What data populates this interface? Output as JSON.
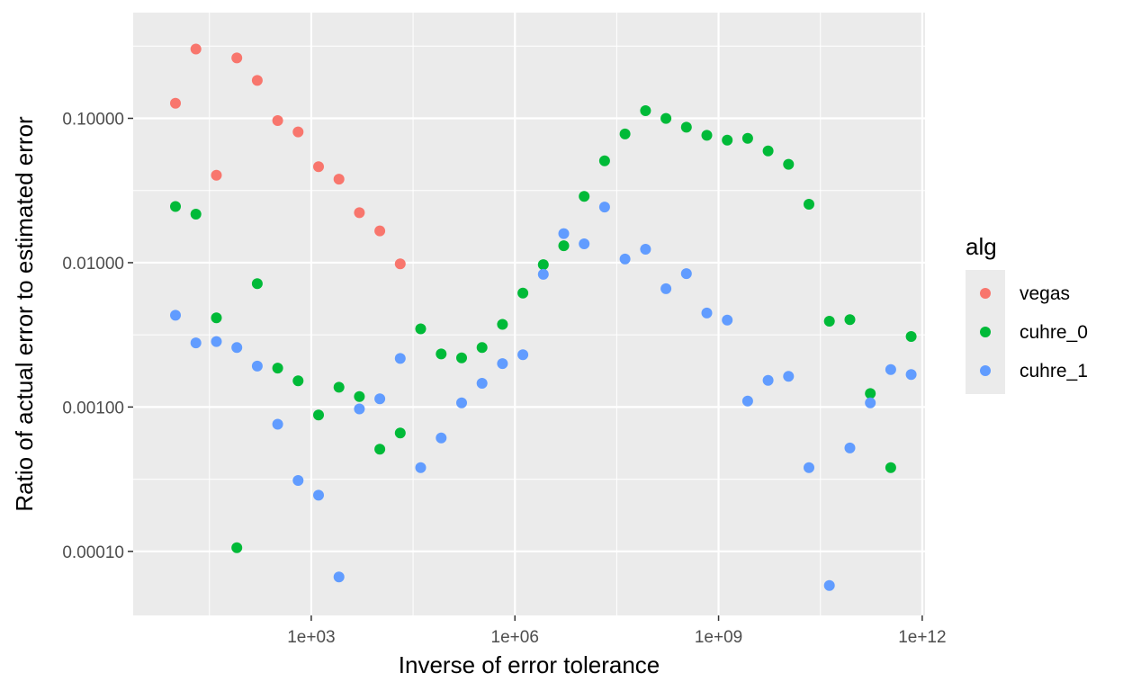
{
  "chart_data": {
    "type": "scatter",
    "xlabel": "Inverse of error tolerance",
    "ylabel": "Ratio of actual error to estimated error",
    "x_scale": "log10",
    "y_scale": "log10",
    "x_ticks": [
      {
        "value": 1000,
        "label": "1e+03"
      },
      {
        "value": 1000000,
        "label": "1e+06"
      },
      {
        "value": 1000000000,
        "label": "1e+09"
      },
      {
        "value": 1000000000000,
        "label": "1e+12"
      }
    ],
    "y_ticks": [
      {
        "value": 0.0001,
        "label": "0.00010"
      },
      {
        "value": 0.001,
        "label": "0.00100"
      },
      {
        "value": 0.01,
        "label": "0.01000"
      },
      {
        "value": 0.1,
        "label": "0.10000"
      }
    ],
    "xlim": [
      2.38,
      1100000000000.0
    ],
    "ylim": [
      3.6e-05,
      0.54
    ],
    "grid": true,
    "legend": {
      "title": "alg",
      "position": "right"
    },
    "series": [
      {
        "name": "vegas",
        "color": "#F8766D",
        "points": [
          [
            10,
            0.127
          ],
          [
            20,
            0.302
          ],
          [
            40,
            0.0404
          ],
          [
            80,
            0.262
          ],
          [
            160,
            0.183
          ],
          [
            320,
            0.0965
          ],
          [
            640,
            0.0805
          ],
          [
            1280,
            0.0463
          ],
          [
            2560,
            0.0379
          ],
          [
            5120,
            0.0222
          ],
          [
            10240,
            0.0166
          ],
          [
            20480,
            0.00982
          ]
        ]
      },
      {
        "name": "cuhre_0",
        "color": "#00BA38",
        "points": [
          [
            10,
            0.0245
          ],
          [
            20,
            0.0217
          ],
          [
            40,
            0.00415
          ],
          [
            80,
            0.000106
          ],
          [
            160,
            0.00715
          ],
          [
            320,
            0.00186
          ],
          [
            640,
            0.00152
          ],
          [
            1280,
            0.00088
          ],
          [
            2560,
            0.00137
          ],
          [
            5120,
            0.00118
          ],
          [
            10240,
            0.00051
          ],
          [
            20480,
            0.00066
          ],
          [
            40960,
            0.00348
          ],
          [
            81920,
            0.00233
          ],
          [
            163840,
            0.00219
          ],
          [
            327680,
            0.00258
          ],
          [
            655360,
            0.00374
          ],
          [
            1310720,
            0.00615
          ],
          [
            2621440,
            0.0097
          ],
          [
            5242880,
            0.0131
          ],
          [
            10485760,
            0.0288
          ],
          [
            20971520,
            0.0508
          ],
          [
            41943040,
            0.0779
          ],
          [
            83886080,
            0.113
          ],
          [
            167772160,
            0.0998
          ],
          [
            335544320,
            0.0868
          ],
          [
            671088640,
            0.0763
          ],
          [
            1342177280,
            0.0707
          ],
          [
            2684354560,
            0.0727
          ],
          [
            5368709120,
            0.0594
          ],
          [
            10737418240,
            0.048
          ],
          [
            21474836480,
            0.0254
          ],
          [
            42949672960,
            0.00393
          ],
          [
            85899345920,
            0.00403
          ],
          [
            171798691840,
            0.00124
          ],
          [
            343597383680,
            0.00038
          ],
          [
            687194767360,
            0.00308
          ]
        ]
      },
      {
        "name": "cuhre_1",
        "color": "#619CFF",
        "points": [
          [
            10,
            0.00432
          ],
          [
            20,
            0.00278
          ],
          [
            40,
            0.00284
          ],
          [
            80,
            0.00258
          ],
          [
            160,
            0.00192
          ],
          [
            320,
            0.00076
          ],
          [
            640,
            0.00031
          ],
          [
            1280,
            0.000245
          ],
          [
            2560,
            6.65e-05
          ],
          [
            5120,
            0.00097
          ],
          [
            10240,
            0.00114
          ],
          [
            20480,
            0.00217
          ],
          [
            40960,
            0.00038
          ],
          [
            81920,
            0.00061
          ],
          [
            163840,
            0.00107
          ],
          [
            327680,
            0.00146
          ],
          [
            655360,
            0.002
          ],
          [
            1310720,
            0.0023
          ],
          [
            2621440,
            0.0083
          ],
          [
            5242880,
            0.0159
          ],
          [
            10485760,
            0.0135
          ],
          [
            20971520,
            0.0243
          ],
          [
            41943040,
            0.0106
          ],
          [
            83886080,
            0.0124
          ],
          [
            167772160,
            0.0066
          ],
          [
            335544320,
            0.0084
          ],
          [
            671088640,
            0.00448
          ],
          [
            1342177280,
            0.004
          ],
          [
            2684354560,
            0.0011
          ],
          [
            5368709120,
            0.00153
          ],
          [
            10737418240,
            0.00163
          ],
          [
            21474836480,
            0.00038
          ],
          [
            42949672960,
            5.8e-05
          ],
          [
            85899345920,
            0.00052
          ],
          [
            171798691840,
            0.00107
          ],
          [
            343597383680,
            0.00182
          ],
          [
            687194767360,
            0.00168
          ]
        ]
      }
    ]
  }
}
